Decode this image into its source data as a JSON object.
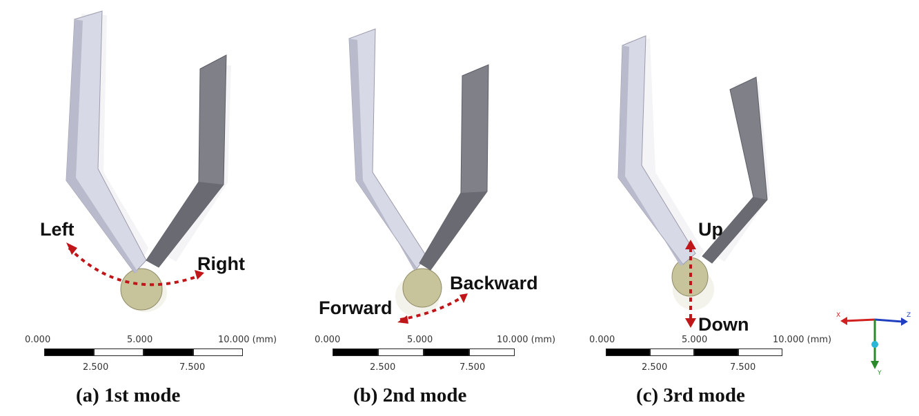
{
  "panels": [
    {
      "caption": "(a) 1st mode",
      "labels": [
        "Left",
        "Right"
      ]
    },
    {
      "caption": "(b) 2nd mode",
      "labels": [
        "Forward",
        "Backward"
      ]
    },
    {
      "caption": "(c) 3rd mode",
      "labels": [
        "Up",
        "Down"
      ]
    }
  ],
  "scale": {
    "top_ticks": [
      "0.000",
      "5.000",
      "10.000 (mm)"
    ],
    "bottom_ticks": [
      "2.500",
      "7.500"
    ]
  },
  "triad": {
    "axis_x": "X",
    "axis_y": "Y",
    "axis_z": "Z"
  },
  "colors": {
    "arrow": "#c0161a",
    "beam_light": "#e4e4ee",
    "beam_face": "#bfc0cf",
    "beam_dark": "#707078",
    "tip": "#c7c39a"
  }
}
